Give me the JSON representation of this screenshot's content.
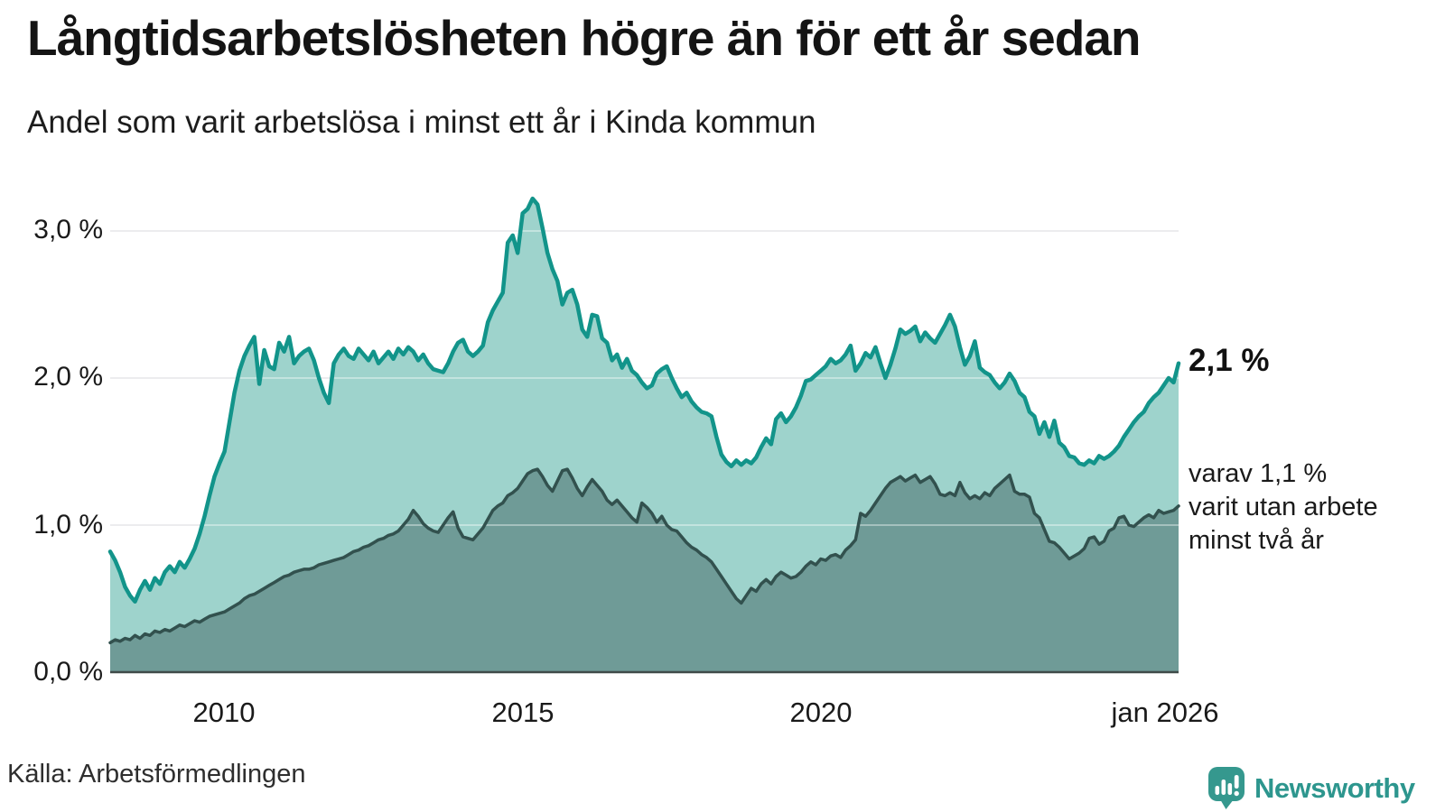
{
  "header": {
    "title": "Långtidsarbetslösheten högre än för ett år sedan",
    "subtitle": "Andel som varit arbetslösa i minst ett år i Kinda kommun"
  },
  "chart_data": {
    "type": "area",
    "title": "Långtidsarbetslösheten högre än för ett år sedan",
    "subtitle": "Andel som varit arbetslösa i minst ett år i Kinda kommun",
    "x_start": "feb 2008",
    "x_end": "jan 2026",
    "x_unit": "month",
    "ylim": [
      0,
      3.4
    ],
    "grid": "horizontal",
    "y_ticks": [
      {
        "value": 3.0,
        "label": "3,0 %"
      },
      {
        "value": 2.0,
        "label": "2,0 %"
      },
      {
        "value": 1.0,
        "label": "1,0 %"
      },
      {
        "value": 0.0,
        "label": "0,0 %"
      }
    ],
    "x_ticks": [
      {
        "label": "2010",
        "month_index": 23
      },
      {
        "label": "2015",
        "month_index": 83
      },
      {
        "label": "2020",
        "month_index": 143
      },
      {
        "label": "jan 2026",
        "month_index": 215
      }
    ],
    "colors": {
      "series1_line": "#12948a",
      "series1_fill": "#9ed3cc",
      "series2_line": "#32514e",
      "series2_fill": "#6f9b97",
      "gridline": "#e0e0e4",
      "axis_line": "#3f4b49"
    },
    "series": [
      {
        "name": "Andel arbetslösa minst ett år",
        "end_value": 2.1,
        "values": [
          0.82,
          0.76,
          0.68,
          0.58,
          0.52,
          0.48,
          0.56,
          0.62,
          0.56,
          0.64,
          0.6,
          0.68,
          0.72,
          0.68,
          0.75,
          0.71,
          0.77,
          0.84,
          0.94,
          1.06,
          1.2,
          1.33,
          1.42,
          1.5,
          1.7,
          1.9,
          2.05,
          2.15,
          2.22,
          2.28,
          1.96,
          2.19,
          2.08,
          2.06,
          2.24,
          2.18,
          2.28,
          2.1,
          2.15,
          2.18,
          2.2,
          2.12,
          2.0,
          1.9,
          1.83,
          2.1,
          2.16,
          2.2,
          2.15,
          2.13,
          2.2,
          2.16,
          2.12,
          2.18,
          2.1,
          2.14,
          2.18,
          2.13,
          2.2,
          2.16,
          2.21,
          2.18,
          2.12,
          2.16,
          2.1,
          2.06,
          2.05,
          2.04,
          2.1,
          2.18,
          2.24,
          2.26,
          2.18,
          2.15,
          2.18,
          2.22,
          2.38,
          2.46,
          2.52,
          2.58,
          2.92,
          2.97,
          2.85,
          3.12,
          3.15,
          3.22,
          3.18,
          3.02,
          2.85,
          2.74,
          2.66,
          2.5,
          2.58,
          2.6,
          2.5,
          2.33,
          2.28,
          2.43,
          2.42,
          2.27,
          2.24,
          2.12,
          2.16,
          2.07,
          2.13,
          2.05,
          2.02,
          1.97,
          1.93,
          1.95,
          2.03,
          2.06,
          2.08,
          2.0,
          1.93,
          1.87,
          1.9,
          1.84,
          1.8,
          1.77,
          1.76,
          1.74,
          1.6,
          1.48,
          1.43,
          1.4,
          1.44,
          1.41,
          1.44,
          1.42,
          1.46,
          1.53,
          1.59,
          1.55,
          1.72,
          1.76,
          1.7,
          1.74,
          1.8,
          1.88,
          1.98,
          1.99,
          2.02,
          2.05,
          2.08,
          2.13,
          2.1,
          2.12,
          2.16,
          2.22,
          2.05,
          2.1,
          2.17,
          2.14,
          2.21,
          2.1,
          2.0,
          2.09,
          2.2,
          2.33,
          2.3,
          2.32,
          2.35,
          2.25,
          2.31,
          2.27,
          2.24,
          2.3,
          2.36,
          2.43,
          2.35,
          2.21,
          2.09,
          2.15,
          2.25,
          2.07,
          2.04,
          2.02,
          1.97,
          1.93,
          1.97,
          2.03,
          1.98,
          1.9,
          1.87,
          1.77,
          1.74,
          1.62,
          1.7,
          1.6,
          1.71,
          1.56,
          1.53,
          1.47,
          1.46,
          1.42,
          1.41,
          1.44,
          1.42,
          1.47,
          1.45,
          1.47,
          1.5,
          1.54,
          1.6,
          1.65,
          1.7,
          1.74,
          1.77,
          1.83,
          1.87,
          1.9,
          1.95,
          2.0,
          1.97,
          2.1
        ]
      },
      {
        "name": "varav utan arbete minst två år",
        "end_value": 1.1,
        "values": [
          0.2,
          0.22,
          0.21,
          0.23,
          0.22,
          0.25,
          0.23,
          0.26,
          0.25,
          0.28,
          0.27,
          0.29,
          0.28,
          0.3,
          0.32,
          0.31,
          0.33,
          0.35,
          0.34,
          0.36,
          0.38,
          0.39,
          0.4,
          0.41,
          0.43,
          0.45,
          0.47,
          0.5,
          0.52,
          0.53,
          0.55,
          0.57,
          0.59,
          0.61,
          0.63,
          0.65,
          0.66,
          0.68,
          0.69,
          0.7,
          0.7,
          0.71,
          0.73,
          0.74,
          0.75,
          0.76,
          0.77,
          0.78,
          0.8,
          0.82,
          0.83,
          0.85,
          0.86,
          0.88,
          0.9,
          0.91,
          0.93,
          0.94,
          0.96,
          1.0,
          1.04,
          1.1,
          1.06,
          1.01,
          0.98,
          0.96,
          0.95,
          1.0,
          1.05,
          1.09,
          0.98,
          0.92,
          0.91,
          0.9,
          0.94,
          0.98,
          1.04,
          1.1,
          1.13,
          1.15,
          1.2,
          1.22,
          1.25,
          1.3,
          1.35,
          1.37,
          1.38,
          1.33,
          1.27,
          1.23,
          1.3,
          1.37,
          1.38,
          1.32,
          1.25,
          1.2,
          1.26,
          1.31,
          1.27,
          1.23,
          1.17,
          1.14,
          1.17,
          1.13,
          1.09,
          1.05,
          1.02,
          1.15,
          1.12,
          1.08,
          1.02,
          1.06,
          1.0,
          0.97,
          0.96,
          0.92,
          0.88,
          0.85,
          0.83,
          0.8,
          0.78,
          0.75,
          0.7,
          0.65,
          0.6,
          0.55,
          0.5,
          0.47,
          0.52,
          0.57,
          0.55,
          0.6,
          0.63,
          0.6,
          0.65,
          0.68,
          0.66,
          0.64,
          0.65,
          0.68,
          0.72,
          0.75,
          0.73,
          0.77,
          0.76,
          0.79,
          0.8,
          0.78,
          0.83,
          0.86,
          0.9,
          1.08,
          1.06,
          1.1,
          1.15,
          1.2,
          1.25,
          1.29,
          1.31,
          1.33,
          1.3,
          1.32,
          1.34,
          1.29,
          1.31,
          1.33,
          1.28,
          1.21,
          1.2,
          1.22,
          1.2,
          1.29,
          1.22,
          1.18,
          1.2,
          1.18,
          1.22,
          1.2,
          1.25,
          1.28,
          1.31,
          1.34,
          1.23,
          1.21,
          1.21,
          1.19,
          1.08,
          1.05,
          0.97,
          0.89,
          0.88,
          0.85,
          0.81,
          0.77,
          0.79,
          0.81,
          0.84,
          0.91,
          0.92,
          0.87,
          0.89,
          0.96,
          0.98,
          1.05,
          1.06,
          1.0,
          0.99,
          1.02,
          1.05,
          1.07,
          1.05,
          1.1,
          1.08,
          1.09,
          1.1,
          1.13
        ]
      }
    ],
    "annotations": {
      "end_value_label": "2,1 %",
      "secondary_lines": [
        "varav 1,1 %",
        "varit utan arbete",
        "minst två år"
      ]
    }
  },
  "footer": {
    "source": "Källa: Arbetsförmedlingen",
    "brand": "Newsworthy"
  }
}
